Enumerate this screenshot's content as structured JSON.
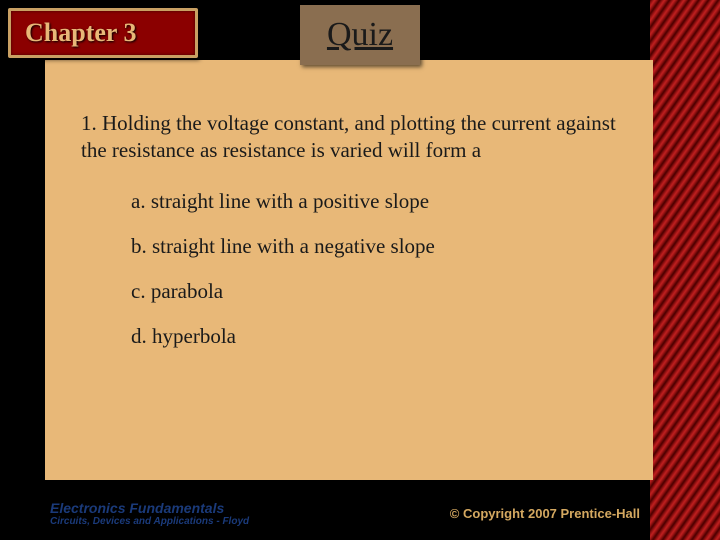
{
  "chapter": {
    "label": "Chapter 3",
    "background_color": "#8b0000",
    "border_color": "#c9a063",
    "text_color": "#e8b878",
    "fontsize": 26
  },
  "quiz": {
    "label": "Quiz",
    "background_color": "#8a6e50",
    "text_color": "#1a1a1a",
    "fontsize": 34
  },
  "content": {
    "background_color": "#e8b878",
    "question": "1. Holding the voltage constant, and plotting the current against the resistance as resistance is varied will form a",
    "options": [
      "a. straight line with a positive slope",
      "b. straight line with a negative slope",
      "c. parabola",
      "d. hyperbola"
    ],
    "text_color": "#1a1a1a",
    "fontsize": 21
  },
  "footer": {
    "title": "Electronics Fundamentals",
    "subtitle": "Circuits, Devices and Applications - Floyd",
    "left_color": "#1a3a7a",
    "copyright": "© Copyright 2007 Prentice-Hall",
    "right_color": "#d4a860"
  },
  "decoration": {
    "right_band_colors": [
      "#4a0000",
      "#6b0505",
      "#8b1010",
      "#a81818",
      "#c02020"
    ]
  },
  "page_background": "#000000"
}
